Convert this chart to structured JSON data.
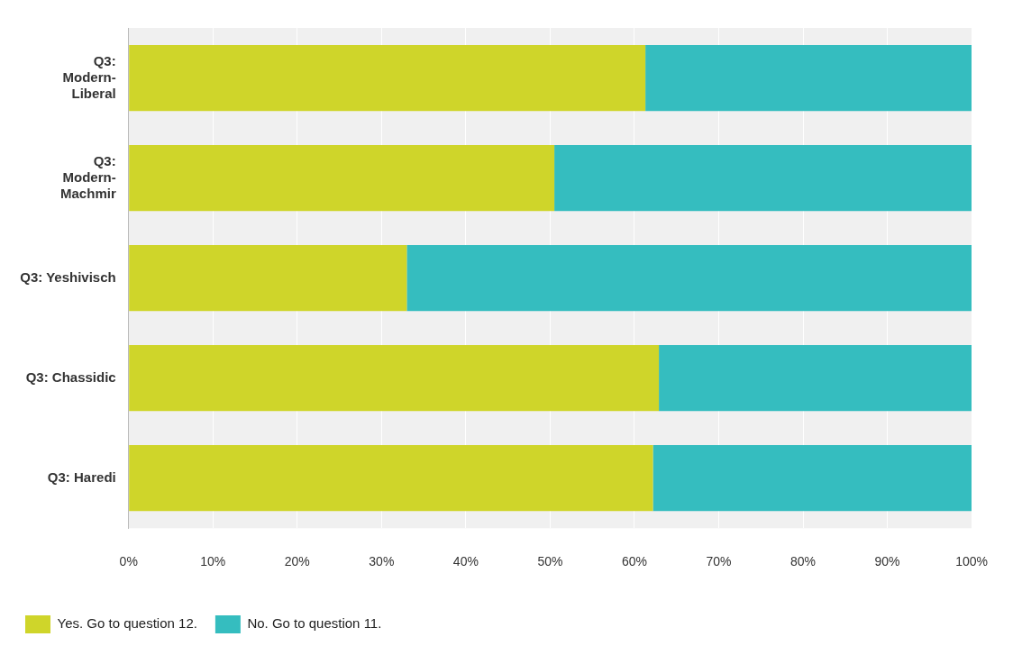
{
  "chart_data": {
    "type": "bar",
    "orientation": "horizontal",
    "stacked": true,
    "categories": [
      "Q3: Modern-Liberal",
      "Q3: Modern-Machmir",
      "Q3: Yeshivisch",
      "Q3: Chassidic",
      "Q3: Haredi"
    ],
    "series": [
      {
        "name": "Yes. Go to question 12.",
        "color": "#cfd52a",
        "values": [
          61.3,
          50.5,
          33.0,
          62.9,
          62.2
        ]
      },
      {
        "name": "No. Go to question 11.",
        "color": "#35bdbf",
        "values": [
          38.7,
          49.5,
          67.0,
          37.1,
          37.8
        ]
      }
    ],
    "xlim": [
      0,
      100
    ],
    "xticks": [
      {
        "value": 0,
        "label": "0%"
      },
      {
        "value": 10,
        "label": "10%"
      },
      {
        "value": 20,
        "label": "20%"
      },
      {
        "value": 30,
        "label": "30%"
      },
      {
        "value": 40,
        "label": "40%"
      },
      {
        "value": 50,
        "label": "50%"
      },
      {
        "value": 60,
        "label": "60%"
      },
      {
        "value": 70,
        "label": "70%"
      },
      {
        "value": 80,
        "label": "80%"
      },
      {
        "value": 90,
        "label": "90%"
      },
      {
        "value": 100,
        "label": "100%"
      }
    ],
    "grid": "x",
    "legend": "bottom left"
  }
}
